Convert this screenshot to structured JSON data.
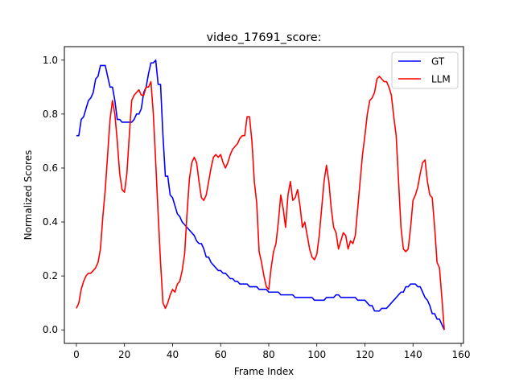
{
  "chart_data": {
    "type": "line",
    "title": "video_17691_score:",
    "xlabel": "Frame Index",
    "ylabel": "Normalized Scores",
    "xlim": [
      -5,
      161
    ],
    "ylim": [
      -0.05,
      1.05
    ],
    "xticks": [
      0,
      20,
      40,
      60,
      80,
      100,
      120,
      140,
      160
    ],
    "yticks": [
      0.0,
      0.2,
      0.4,
      0.6,
      0.8,
      1.0
    ],
    "grid": false,
    "legend_position": "top-right",
    "series": [
      {
        "name": "GT",
        "color": "#0000ff",
        "points": [
          [
            0,
            0.72
          ],
          [
            1,
            0.72
          ],
          [
            2,
            0.78
          ],
          [
            3,
            0.79
          ],
          [
            4,
            0.82
          ],
          [
            5,
            0.85
          ],
          [
            6,
            0.86
          ],
          [
            7,
            0.88
          ],
          [
            8,
            0.93
          ],
          [
            9,
            0.94
          ],
          [
            10,
            0.98
          ],
          [
            11,
            0.98
          ],
          [
            12,
            0.98
          ],
          [
            13,
            0.94
          ],
          [
            14,
            0.9
          ],
          [
            15,
            0.9
          ],
          [
            16,
            0.85
          ],
          [
            17,
            0.78
          ],
          [
            18,
            0.78
          ],
          [
            19,
            0.77
          ],
          [
            20,
            0.77
          ],
          [
            21,
            0.77
          ],
          [
            22,
            0.77
          ],
          [
            23,
            0.77
          ],
          [
            24,
            0.78
          ],
          [
            25,
            0.8
          ],
          [
            26,
            0.8
          ],
          [
            27,
            0.82
          ],
          [
            28,
            0.88
          ],
          [
            29,
            0.9
          ],
          [
            30,
            0.95
          ],
          [
            31,
            0.99
          ],
          [
            32,
            0.99
          ],
          [
            33,
            1.0
          ],
          [
            34,
            0.91
          ],
          [
            35,
            0.91
          ],
          [
            36,
            0.72
          ],
          [
            37,
            0.57
          ],
          [
            38,
            0.57
          ],
          [
            39,
            0.5
          ],
          [
            40,
            0.49
          ],
          [
            41,
            0.46
          ],
          [
            42,
            0.43
          ],
          [
            43,
            0.42
          ],
          [
            44,
            0.4
          ],
          [
            45,
            0.39
          ],
          [
            46,
            0.38
          ],
          [
            47,
            0.37
          ],
          [
            48,
            0.36
          ],
          [
            49,
            0.35
          ],
          [
            50,
            0.33
          ],
          [
            51,
            0.32
          ],
          [
            52,
            0.32
          ],
          [
            53,
            0.3
          ],
          [
            54,
            0.27
          ],
          [
            55,
            0.27
          ],
          [
            56,
            0.25
          ],
          [
            57,
            0.24
          ],
          [
            58,
            0.23
          ],
          [
            59,
            0.22
          ],
          [
            60,
            0.22
          ],
          [
            61,
            0.21
          ],
          [
            62,
            0.21
          ],
          [
            63,
            0.2
          ],
          [
            64,
            0.19
          ],
          [
            65,
            0.19
          ],
          [
            66,
            0.18
          ],
          [
            67,
            0.18
          ],
          [
            68,
            0.17
          ],
          [
            69,
            0.17
          ],
          [
            70,
            0.17
          ],
          [
            71,
            0.17
          ],
          [
            72,
            0.16
          ],
          [
            73,
            0.16
          ],
          [
            74,
            0.16
          ],
          [
            75,
            0.16
          ],
          [
            76,
            0.15
          ],
          [
            77,
            0.15
          ],
          [
            78,
            0.15
          ],
          [
            79,
            0.15
          ],
          [
            80,
            0.14
          ],
          [
            81,
            0.14
          ],
          [
            82,
            0.14
          ],
          [
            83,
            0.14
          ],
          [
            84,
            0.14
          ],
          [
            85,
            0.13
          ],
          [
            86,
            0.13
          ],
          [
            87,
            0.13
          ],
          [
            88,
            0.13
          ],
          [
            89,
            0.13
          ],
          [
            90,
            0.13
          ],
          [
            91,
            0.12
          ],
          [
            92,
            0.12
          ],
          [
            93,
            0.12
          ],
          [
            94,
            0.12
          ],
          [
            95,
            0.12
          ],
          [
            96,
            0.12
          ],
          [
            97,
            0.12
          ],
          [
            98,
            0.12
          ],
          [
            99,
            0.11
          ],
          [
            100,
            0.11
          ],
          [
            101,
            0.11
          ],
          [
            102,
            0.11
          ],
          [
            103,
            0.11
          ],
          [
            104,
            0.12
          ],
          [
            105,
            0.12
          ],
          [
            106,
            0.12
          ],
          [
            107,
            0.12
          ],
          [
            108,
            0.13
          ],
          [
            109,
            0.13
          ],
          [
            110,
            0.12
          ],
          [
            111,
            0.12
          ],
          [
            112,
            0.12
          ],
          [
            113,
            0.12
          ],
          [
            114,
            0.12
          ],
          [
            115,
            0.12
          ],
          [
            116,
            0.12
          ],
          [
            117,
            0.11
          ],
          [
            118,
            0.11
          ],
          [
            119,
            0.11
          ],
          [
            120,
            0.11
          ],
          [
            121,
            0.1
          ],
          [
            122,
            0.09
          ],
          [
            123,
            0.09
          ],
          [
            124,
            0.07
          ],
          [
            125,
            0.07
          ],
          [
            126,
            0.07
          ],
          [
            127,
            0.08
          ],
          [
            128,
            0.08
          ],
          [
            129,
            0.08
          ],
          [
            130,
            0.09
          ],
          [
            131,
            0.1
          ],
          [
            132,
            0.11
          ],
          [
            133,
            0.12
          ],
          [
            134,
            0.13
          ],
          [
            135,
            0.14
          ],
          [
            136,
            0.14
          ],
          [
            137,
            0.16
          ],
          [
            138,
            0.16
          ],
          [
            139,
            0.17
          ],
          [
            140,
            0.17
          ],
          [
            141,
            0.17
          ],
          [
            142,
            0.16
          ],
          [
            143,
            0.16
          ],
          [
            144,
            0.14
          ],
          [
            145,
            0.12
          ],
          [
            146,
            0.11
          ],
          [
            147,
            0.09
          ],
          [
            148,
            0.06
          ],
          [
            149,
            0.06
          ],
          [
            150,
            0.04
          ],
          [
            151,
            0.04
          ],
          [
            152,
            0.02
          ],
          [
            153,
            0.0
          ]
        ]
      },
      {
        "name": "LLM",
        "color": "#ff0000",
        "points": [
          [
            0,
            0.08
          ],
          [
            1,
            0.1
          ],
          [
            2,
            0.15
          ],
          [
            3,
            0.18
          ],
          [
            4,
            0.2
          ],
          [
            5,
            0.21
          ],
          [
            6,
            0.21
          ],
          [
            7,
            0.22
          ],
          [
            8,
            0.23
          ],
          [
            9,
            0.25
          ],
          [
            10,
            0.3
          ],
          [
            11,
            0.42
          ],
          [
            12,
            0.52
          ],
          [
            13,
            0.65
          ],
          [
            14,
            0.78
          ],
          [
            15,
            0.85
          ],
          [
            16,
            0.8
          ],
          [
            17,
            0.7
          ],
          [
            18,
            0.58
          ],
          [
            19,
            0.52
          ],
          [
            20,
            0.51
          ],
          [
            21,
            0.58
          ],
          [
            22,
            0.72
          ],
          [
            23,
            0.85
          ],
          [
            24,
            0.87
          ],
          [
            25,
            0.88
          ],
          [
            26,
            0.89
          ],
          [
            27,
            0.87
          ],
          [
            28,
            0.87
          ],
          [
            29,
            0.9
          ],
          [
            30,
            0.9
          ],
          [
            31,
            0.92
          ],
          [
            32,
            0.8
          ],
          [
            33,
            0.62
          ],
          [
            34,
            0.43
          ],
          [
            35,
            0.25
          ],
          [
            36,
            0.1
          ],
          [
            37,
            0.08
          ],
          [
            38,
            0.1
          ],
          [
            39,
            0.13
          ],
          [
            40,
            0.15
          ],
          [
            41,
            0.14
          ],
          [
            42,
            0.17
          ],
          [
            43,
            0.18
          ],
          [
            44,
            0.22
          ],
          [
            45,
            0.28
          ],
          [
            46,
            0.43
          ],
          [
            47,
            0.56
          ],
          [
            48,
            0.62
          ],
          [
            49,
            0.64
          ],
          [
            50,
            0.62
          ],
          [
            51,
            0.55
          ],
          [
            52,
            0.49
          ],
          [
            53,
            0.48
          ],
          [
            54,
            0.5
          ],
          [
            55,
            0.55
          ],
          [
            56,
            0.6
          ],
          [
            57,
            0.64
          ],
          [
            58,
            0.65
          ],
          [
            59,
            0.64
          ],
          [
            60,
            0.65
          ],
          [
            61,
            0.62
          ],
          [
            62,
            0.6
          ],
          [
            63,
            0.62
          ],
          [
            64,
            0.65
          ],
          [
            65,
            0.67
          ],
          [
            66,
            0.68
          ],
          [
            67,
            0.69
          ],
          [
            68,
            0.71
          ],
          [
            69,
            0.72
          ],
          [
            70,
            0.72
          ],
          [
            71,
            0.79
          ],
          [
            72,
            0.79
          ],
          [
            73,
            0.7
          ],
          [
            74,
            0.55
          ],
          [
            75,
            0.47
          ],
          [
            76,
            0.29
          ],
          [
            77,
            0.25
          ],
          [
            78,
            0.2
          ],
          [
            79,
            0.16
          ],
          [
            80,
            0.15
          ],
          [
            81,
            0.23
          ],
          [
            82,
            0.29
          ],
          [
            83,
            0.32
          ],
          [
            84,
            0.4
          ],
          [
            85,
            0.5
          ],
          [
            86,
            0.45
          ],
          [
            87,
            0.38
          ],
          [
            88,
            0.5
          ],
          [
            89,
            0.55
          ],
          [
            90,
            0.48
          ],
          [
            91,
            0.49
          ],
          [
            92,
            0.52
          ],
          [
            93,
            0.46
          ],
          [
            94,
            0.38
          ],
          [
            95,
            0.4
          ],
          [
            96,
            0.35
          ],
          [
            97,
            0.3
          ],
          [
            98,
            0.27
          ],
          [
            99,
            0.26
          ],
          [
            100,
            0.28
          ],
          [
            101,
            0.35
          ],
          [
            102,
            0.45
          ],
          [
            103,
            0.55
          ],
          [
            104,
            0.61
          ],
          [
            105,
            0.55
          ],
          [
            106,
            0.45
          ],
          [
            107,
            0.38
          ],
          [
            108,
            0.36
          ],
          [
            109,
            0.3
          ],
          [
            110,
            0.33
          ],
          [
            111,
            0.36
          ],
          [
            112,
            0.35
          ],
          [
            113,
            0.3
          ],
          [
            114,
            0.33
          ],
          [
            115,
            0.32
          ],
          [
            116,
            0.35
          ],
          [
            117,
            0.45
          ],
          [
            118,
            0.55
          ],
          [
            119,
            0.65
          ],
          [
            120,
            0.72
          ],
          [
            121,
            0.8
          ],
          [
            122,
            0.85
          ],
          [
            123,
            0.86
          ],
          [
            124,
            0.88
          ],
          [
            125,
            0.93
          ],
          [
            126,
            0.94
          ],
          [
            127,
            0.93
          ],
          [
            128,
            0.92
          ],
          [
            129,
            0.92
          ],
          [
            130,
            0.9
          ],
          [
            131,
            0.87
          ],
          [
            132,
            0.79
          ],
          [
            133,
            0.72
          ],
          [
            134,
            0.55
          ],
          [
            135,
            0.38
          ],
          [
            136,
            0.3
          ],
          [
            137,
            0.29
          ],
          [
            138,
            0.3
          ],
          [
            139,
            0.38
          ],
          [
            140,
            0.48
          ],
          [
            141,
            0.5
          ],
          [
            142,
            0.53
          ],
          [
            143,
            0.58
          ],
          [
            144,
            0.62
          ],
          [
            145,
            0.63
          ],
          [
            146,
            0.55
          ],
          [
            147,
            0.5
          ],
          [
            148,
            0.49
          ],
          [
            149,
            0.38
          ],
          [
            150,
            0.25
          ],
          [
            151,
            0.23
          ],
          [
            152,
            0.12
          ],
          [
            153,
            0.0
          ]
        ]
      }
    ]
  }
}
